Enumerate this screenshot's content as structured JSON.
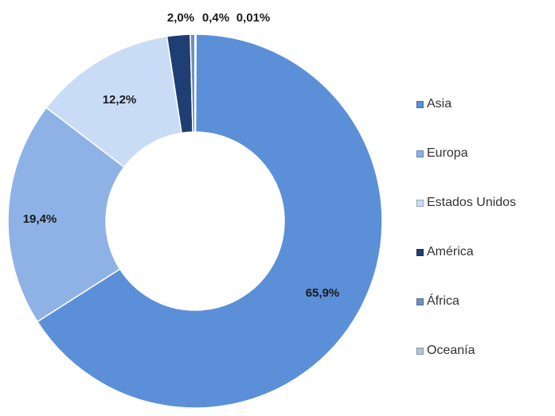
{
  "chart_data": {
    "type": "pie",
    "subtype": "donut",
    "title": "",
    "categories": [
      "Asia",
      "Europa",
      "Estados Unidos",
      "América",
      "África",
      "Oceanía"
    ],
    "values": [
      65.9,
      19.4,
      12.2,
      2.0,
      0.4,
      0.01
    ],
    "value_labels": [
      "65,9%",
      "19,4%",
      "12,2%",
      "2,0%",
      "0,4%",
      "0,01%"
    ],
    "colors": [
      "#5b8fd8",
      "#8fb2e6",
      "#c9dcf5",
      "#1f3f74",
      "#6f8fc0",
      "#b9c3d3"
    ],
    "legend_position": "right"
  }
}
